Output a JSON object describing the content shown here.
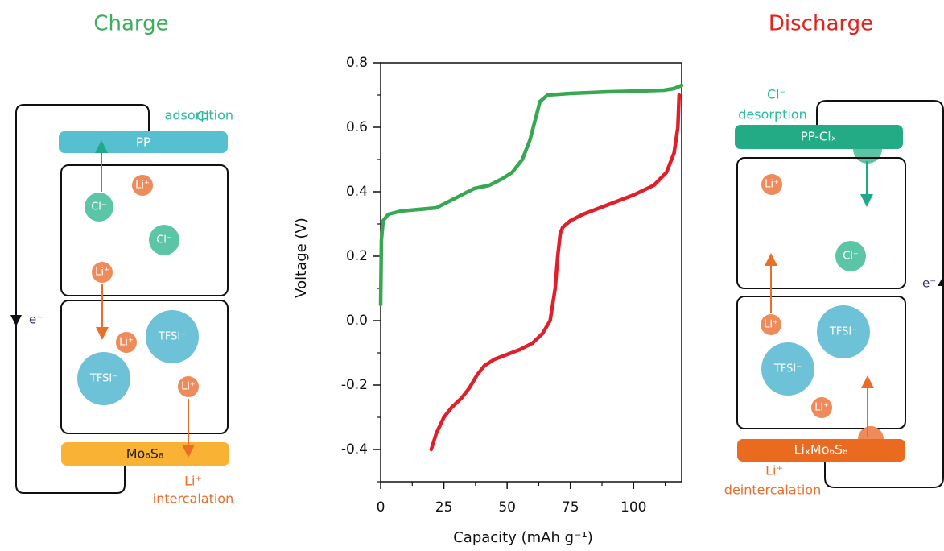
{
  "chart_data": {
    "type": "line",
    "x_label": "Capacity (mAh g⁻¹)",
    "y_label": "Voltage (V)",
    "xlim": [
      0,
      119
    ],
    "ylim": [
      -0.5,
      0.8
    ],
    "xticks": [
      0,
      25,
      50,
      75,
      100
    ],
    "xticks_minor": [
      12.5,
      37.5,
      62.5,
      87.5,
      112.5
    ],
    "yticks": [
      -0.4,
      -0.2,
      {
        "value": 0,
        "label": "0.0"
      },
      0.2,
      0.4,
      0.6,
      0.8
    ],
    "yticks_minor": [
      -0.5,
      -0.3,
      -0.1,
      0.1,
      0.3,
      0.5,
      0.7
    ],
    "series": [
      {
        "color": "#37a752",
        "x": [
          0,
          0.3,
          1,
          3,
          8,
          15,
          22,
          27,
          32,
          37,
          43,
          48,
          52,
          56,
          59,
          61,
          63,
          66,
          75,
          90,
          105,
          112,
          116,
          119
        ],
        "values": [
          0.05,
          0.25,
          0.31,
          0.33,
          0.34,
          0.345,
          0.35,
          0.37,
          0.39,
          0.41,
          0.42,
          0.44,
          0.46,
          0.5,
          0.56,
          0.62,
          0.68,
          0.7,
          0.705,
          0.71,
          0.713,
          0.715,
          0.72,
          0.73
        ]
      },
      {
        "color": "#e01f2a",
        "x": [
          20,
          22,
          25,
          28,
          32,
          35,
          38,
          41,
          45,
          50,
          55,
          60,
          64,
          67,
          69,
          70,
          71,
          72,
          75,
          80,
          90,
          100,
          108,
          113,
          116,
          117.5,
          118
        ],
        "values": [
          -0.4,
          -0.35,
          -0.3,
          -0.27,
          -0.24,
          -0.21,
          -0.17,
          -0.14,
          -0.12,
          -0.105,
          -0.09,
          -0.07,
          -0.04,
          0.0,
          0.1,
          0.2,
          0.27,
          0.29,
          0.31,
          0.33,
          0.36,
          0.39,
          0.42,
          0.46,
          0.52,
          0.6,
          0.7
        ]
      }
    ]
  },
  "charge": {
    "title": "Charge",
    "adsorption": [
      "Cl⁻",
      "adsorption"
    ],
    "top_electrode": "PP",
    "bottom_electrode": "Mo₆S₈",
    "electron": "e⁻",
    "intercalation": [
      "Li⁺",
      "intercalation"
    ],
    "ions": [
      "Cl⁻",
      "Li⁺",
      "Cl⁻",
      "Li⁺",
      "TFSI⁻",
      "Li⁺",
      "TFSI⁻",
      "Li⁺"
    ]
  },
  "discharge": {
    "title": "Discharge",
    "desorption": [
      "Cl⁻",
      "desorption"
    ],
    "top_electrode": "PP-Clₓ",
    "bottom_electrode": "LiₓMo₆S₈",
    "electron": "e⁻",
    "deintercalation": [
      "Li⁺",
      "deintercalation"
    ],
    "ions": [
      "Li⁺",
      "Cl⁻",
      "Li⁺",
      "TFSI⁻",
      "TFSI⁻",
      "Li⁺"
    ]
  }
}
